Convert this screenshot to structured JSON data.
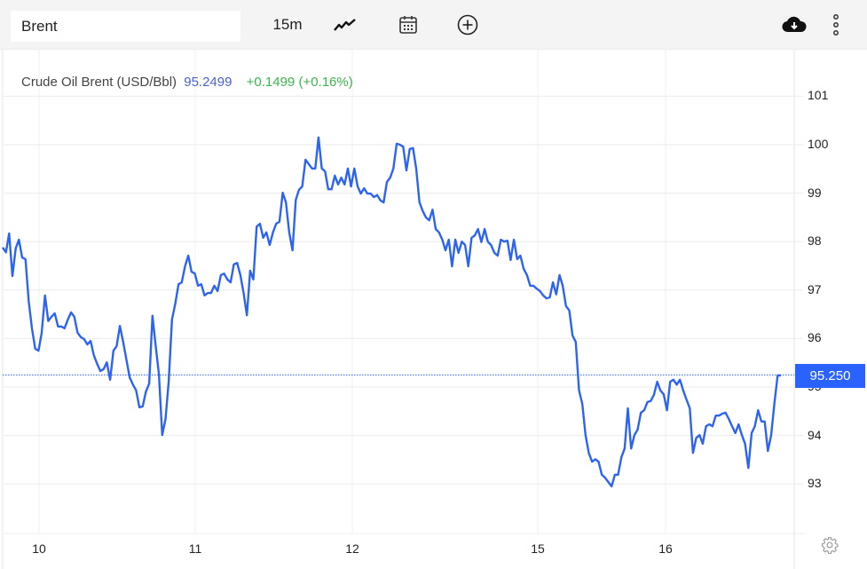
{
  "toolbar": {
    "search_value": "Brent",
    "interval": "15m",
    "icons": [
      "line-chart-icon",
      "calendar-icon",
      "add-circle-icon",
      "cloud-download-icon",
      "more-vertical-icon"
    ]
  },
  "legend": {
    "name": "Crude Oil Brent (USD/Bbl)",
    "price": "95.2499",
    "change": "+0.1499 (+0.16%)"
  },
  "colors": {
    "line": "#2c64f0",
    "price_tag": "#2962ff",
    "change": "#3cb34a",
    "price": "#4a5fd8"
  },
  "chart_data": {
    "type": "line",
    "title": "",
    "xlabel": "",
    "ylabel": "",
    "x_tick_labels": [
      "10",
      "11",
      "12",
      "15",
      "16"
    ],
    "y_ticks": [
      93,
      94,
      95,
      96,
      97,
      98,
      99,
      100,
      101
    ],
    "ylim": [
      92,
      102
    ],
    "y_axis_position": "right",
    "grid": true,
    "last_price_label": "95.250",
    "last_price": 95.25,
    "series": [
      {
        "values": [
          97.88,
          97.78,
          98.17,
          97.29,
          97.86,
          98.04,
          97.67,
          97.64,
          96.76,
          96.21,
          95.79,
          95.75,
          96.12,
          96.89,
          96.36,
          96.45,
          96.52,
          96.25,
          96.25,
          96.21,
          96.39,
          96.54,
          96.45,
          96.12,
          96.03,
          95.99,
          95.88,
          95.95,
          95.66,
          95.48,
          95.33,
          95.37,
          95.51,
          95.15,
          95.75,
          95.84,
          96.26,
          95.93,
          95.57,
          95.2,
          95.05,
          94.93,
          94.58,
          94.6,
          94.91,
          95.07,
          96.47,
          95.84,
          95.26,
          94.01,
          94.34,
          95.11,
          96.39,
          96.72,
          97.12,
          97.16,
          97.49,
          97.71,
          97.38,
          97.34,
          97.09,
          97.12,
          96.89,
          96.94,
          96.94,
          97.09,
          96.98,
          97.31,
          97.34,
          97.22,
          97.16,
          97.53,
          97.56,
          97.31,
          96.94,
          96.48,
          97.4,
          97.22,
          98.31,
          98.37,
          98.08,
          98.19,
          97.93,
          98.19,
          98.37,
          98.41,
          99.01,
          98.81,
          98.19,
          97.82,
          98.86,
          99.07,
          99.14,
          99.69,
          99.6,
          99.51,
          99.51,
          100.15,
          99.51,
          99.45,
          99.08,
          99.08,
          99.36,
          99.18,
          99.32,
          99.18,
          99.51,
          99.14,
          99.51,
          99.14,
          98.99,
          99.1,
          98.99,
          98.99,
          98.92,
          98.96,
          98.85,
          98.81,
          99.23,
          99.32,
          99.51,
          100.02,
          100.0,
          99.96,
          99.47,
          99.91,
          99.93,
          99.51,
          98.81,
          98.63,
          98.5,
          98.44,
          98.66,
          98.26,
          98.19,
          98.04,
          97.82,
          98.04,
          97.49,
          98.04,
          97.77,
          98.0,
          97.93,
          97.49,
          98.08,
          98.13,
          98.26,
          97.99,
          98.26,
          98.0,
          97.93,
          97.77,
          97.71,
          98.04,
          98.0,
          98.02,
          97.62,
          98.04,
          97.64,
          97.71,
          97.44,
          97.31,
          97.09,
          97.09,
          97.03,
          96.98,
          96.89,
          96.83,
          96.85,
          97.16,
          96.91,
          97.31,
          97.09,
          96.67,
          96.58,
          96.06,
          95.93,
          94.93,
          94.65,
          94.01,
          93.64,
          93.46,
          93.51,
          93.46,
          93.19,
          93.13,
          93.04,
          92.95,
          93.19,
          93.19,
          93.55,
          93.73,
          94.56,
          93.73,
          94.01,
          94.12,
          94.47,
          94.52,
          94.69,
          94.71,
          94.84,
          95.11,
          94.93,
          94.85,
          94.52,
          95.11,
          95.15,
          95.05,
          95.15,
          94.93,
          94.74,
          94.56,
          93.64,
          93.95,
          94.01,
          93.83,
          94.19,
          94.23,
          94.19,
          94.41,
          94.41,
          94.45,
          94.47,
          94.34,
          94.19,
          94.05,
          94.23,
          94.01,
          93.83,
          93.33,
          94.05,
          94.19,
          94.52,
          94.29,
          94.29,
          93.68,
          94.01,
          94.67,
          95.24,
          95.24
        ]
      }
    ]
  }
}
